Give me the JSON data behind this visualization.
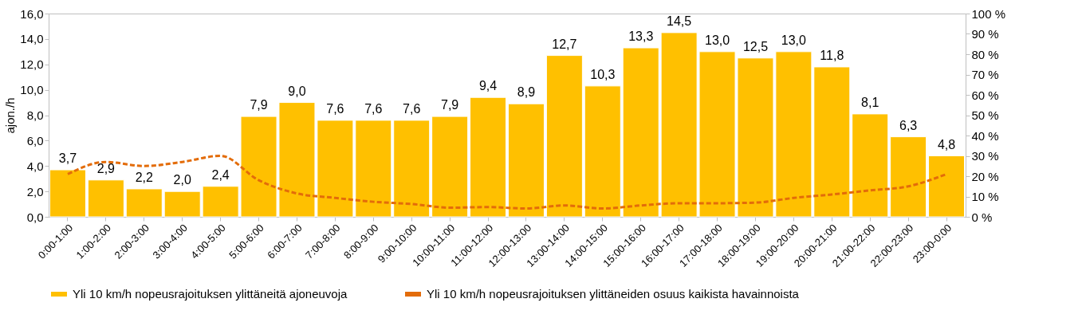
{
  "chart_data": {
    "type": "bar",
    "ylabel": "ajon./h",
    "categories": [
      "0:00-1:00",
      "1:00-2:00",
      "2:00-3:00",
      "3:00-4:00",
      "4:00-5:00",
      "5:00-6:00",
      "6:00-7:00",
      "7:00-8:00",
      "8:00-9:00",
      "9:00-10:00",
      "10:00-11:00",
      "11:00-12:00",
      "12:00-13:00",
      "13:00-14:00",
      "14:00-15:00",
      "15:00-16:00",
      "16:00-17:00",
      "17:00-18:00",
      "18:00-19:00",
      "19:00-20:00",
      "20:00-21:00",
      "21:00-22:00",
      "22:00-23:00",
      "23:00-0:00"
    ],
    "series": [
      {
        "name": "Yli 10 km/h nopeusrajoituksen ylittäneitä ajoneuvoja",
        "color": "#ffc000",
        "values": [
          3.7,
          2.9,
          2.2,
          2.0,
          2.4,
          7.9,
          9.0,
          7.6,
          7.6,
          7.6,
          7.9,
          9.4,
          8.9,
          12.7,
          10.3,
          13.3,
          14.5,
          13.0,
          12.5,
          13.0,
          11.8,
          8.1,
          6.3,
          4.8
        ],
        "value_labels": [
          "3,7",
          "2,9",
          "2,2",
          "2,0",
          "2,4",
          "7,9",
          "9,0",
          "7,6",
          "7,6",
          "7,6",
          "7,9",
          "9,4",
          "8,9",
          "12,7",
          "10,3",
          "13,3",
          "14,5",
          "13,0",
          "12,5",
          "13,0",
          "11,8",
          "8,1",
          "6,3",
          "4,8"
        ]
      },
      {
        "name": "Yli 10 km/h nopeusrajoituksen ylittäneiden osuus kaikista havainnoista",
        "type": "line",
        "axis": "y2",
        "color": "#e36c0a",
        "line_style": "dashed",
        "marker": "none",
        "values": [
          21,
          27,
          25,
          27,
          30,
          18,
          11.5,
          9.3,
          7.4,
          6.3,
          4.5,
          4.8,
          4.1,
          5.6,
          4.1,
          5.6,
          6.7,
          6.7,
          7,
          9.3,
          11,
          13,
          15,
          21
        ]
      }
    ],
    "ylim": [
      0,
      16
    ],
    "yticks": [
      {
        "value": 0,
        "label": "0,0"
      },
      {
        "value": 2,
        "label": "2,0"
      },
      {
        "value": 4,
        "label": "4,0"
      },
      {
        "value": 6,
        "label": "6,0"
      },
      {
        "value": 8,
        "label": "8,0"
      },
      {
        "value": 10,
        "label": "10,0"
      },
      {
        "value": 12,
        "label": "12,0"
      },
      {
        "value": 14,
        "label": "14,0"
      },
      {
        "value": 16,
        "label": "16,0"
      }
    ],
    "y2lim": [
      0,
      100
    ],
    "y2ticks": [
      {
        "value": 0,
        "label": "0 %"
      },
      {
        "value": 10,
        "label": "10 %"
      },
      {
        "value": 20,
        "label": "20 %"
      },
      {
        "value": 30,
        "label": "30 %"
      },
      {
        "value": 40,
        "label": "40 %"
      },
      {
        "value": 50,
        "label": "50 %"
      },
      {
        "value": 60,
        "label": "60 %"
      },
      {
        "value": 70,
        "label": "70 %"
      },
      {
        "value": 80,
        "label": "80 %"
      },
      {
        "value": 90,
        "label": "90 %"
      },
      {
        "value": 100,
        "label": "100 %"
      }
    ],
    "grid": false,
    "legend": "bottom"
  }
}
